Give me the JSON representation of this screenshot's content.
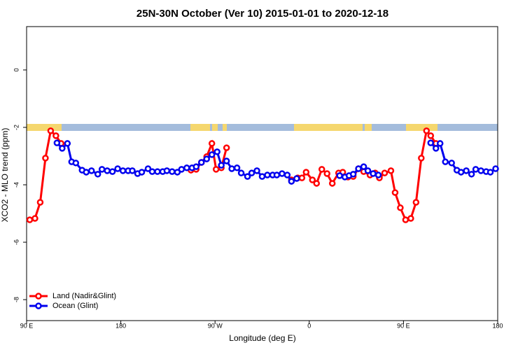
{
  "chart_data": {
    "type": "line",
    "title": "25N-30N October (Ver 10)   2015-01-01 to 2020-12-18",
    "xlabel": "Longitude (deg E)",
    "ylabel": "XCO2 - MLO trend (ppm)",
    "xlim": [
      90,
      540
    ],
    "xticks": [
      {
        "value": 90,
        "label": "90 E"
      },
      180,
      {
        "value": 270,
        "label": "90 W"
      },
      {
        "value": 360,
        "label": "0"
      },
      {
        "value": 450,
        "label": "90 E"
      },
      {
        "value": 540,
        "label": "180"
      }
    ],
    "ylim": [
      -8.73,
      1.51
    ],
    "yticks": [
      -8,
      -6,
      -4,
      -2,
      0
    ],
    "legend": "bottom-left",
    "series": [
      {
        "name": "Land (Nadir&Glint)",
        "color": "#ff0000",
        "x": [
          93,
          98,
          103,
          108,
          113,
          118,
          123,
          null,
          247,
          252,
          257,
          262,
          267,
          271,
          276,
          281,
          null,
          343,
          349,
          353,
          357,
          363,
          367,
          372,
          377,
          382,
          388,
          392,
          397,
          402,
          407,
          412,
          418,
          423,
          427,
          432,
          438,
          442,
          447,
          452,
          457,
          462,
          467,
          472,
          476,
          481
        ],
        "values": [
          -5.22,
          -5.17,
          -4.61,
          -3.07,
          -2.12,
          -2.29,
          -2.56,
          null,
          -3.49,
          -3.46,
          -3.22,
          -3.02,
          -2.56,
          -3.46,
          -3.41,
          -2.71,
          null,
          -3.83,
          -3.76,
          -3.76,
          -3.56,
          -3.83,
          -3.95,
          -3.46,
          -3.61,
          -3.95,
          -3.59,
          -3.56,
          -3.73,
          -3.71,
          -3.44,
          -3.54,
          -3.66,
          -3.59,
          -3.76,
          -3.59,
          -3.51,
          -4.27,
          -4.8,
          -5.22,
          -5.17,
          -4.61,
          -3.07,
          -2.12,
          -2.29,
          -2.56
        ]
      },
      {
        "name": "Ocean (Glint)",
        "color": "#0000ee",
        "x": [
          119,
          124,
          129,
          133,
          137,
          143,
          147,
          152,
          158,
          162,
          167,
          172,
          177,
          182,
          187,
          191,
          196,
          200,
          206,
          210,
          215,
          220,
          224,
          229,
          234,
          238,
          243,
          248,
          252,
          257,
          262,
          267,
          272,
          276,
          281,
          286,
          291,
          295,
          301,
          305,
          310,
          315,
          320,
          325,
          329,
          334,
          339,
          343,
          348,
          null,
          389,
          394,
          398,
          402,
          407,
          412,
          416,
          421,
          426,
          null,
          476,
          481,
          485,
          490,
          496,
          501,
          505,
          510,
          515,
          519,
          524,
          529,
          533,
          538
        ],
        "values": [
          -2.54,
          -2.73,
          -2.56,
          -3.2,
          -3.24,
          -3.49,
          -3.56,
          -3.51,
          -3.63,
          -3.46,
          -3.51,
          -3.54,
          -3.44,
          -3.51,
          -3.51,
          -3.51,
          -3.61,
          -3.56,
          -3.44,
          -3.54,
          -3.54,
          -3.54,
          -3.51,
          -3.54,
          -3.56,
          -3.46,
          -3.41,
          -3.41,
          -3.37,
          -3.22,
          -3.1,
          -2.95,
          -2.85,
          -3.32,
          -3.17,
          -3.44,
          -3.41,
          -3.59,
          -3.71,
          -3.59,
          -3.51,
          -3.71,
          -3.66,
          -3.66,
          -3.66,
          -3.61,
          -3.66,
          -3.88,
          -3.78,
          null,
          -3.68,
          -3.73,
          -3.68,
          -3.63,
          -3.44,
          -3.37,
          -3.51,
          -3.61,
          -3.66,
          null,
          -2.54,
          -2.73,
          -2.56,
          -3.2,
          -3.24,
          -3.49,
          -3.56,
          -3.51,
          -3.63,
          -3.46,
          -3.51,
          -3.54,
          -3.56,
          -3.44
        ]
      }
    ]
  }
}
